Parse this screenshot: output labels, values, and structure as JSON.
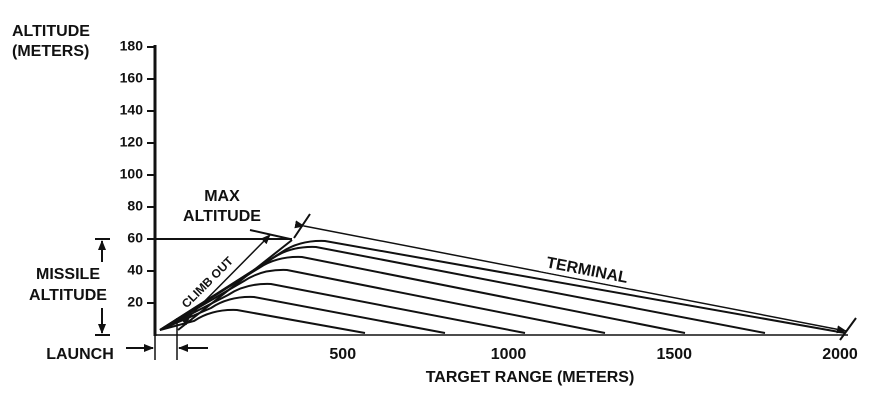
{
  "chart_data": {
    "type": "line",
    "y_label": [
      "ALTITUDE",
      "(METERS)"
    ],
    "x_label": "TARGET RANGE (METERS)",
    "ylim": [
      0,
      180
    ],
    "yticks": [
      20,
      40,
      60,
      80,
      100,
      120,
      140,
      160,
      180
    ],
    "xlim": [
      0,
      2000
    ],
    "xticks": [
      500,
      1000,
      1500,
      2000
    ],
    "annotations": {
      "max_altitude": [
        "MAX",
        "ALTITUDE"
      ],
      "climb_out": "CLIMB OUT",
      "terminal": "TERMINAL",
      "missile_altitude": [
        "MISSILE",
        "ALTITUDE"
      ],
      "launch": "LAUNCH"
    }
  }
}
